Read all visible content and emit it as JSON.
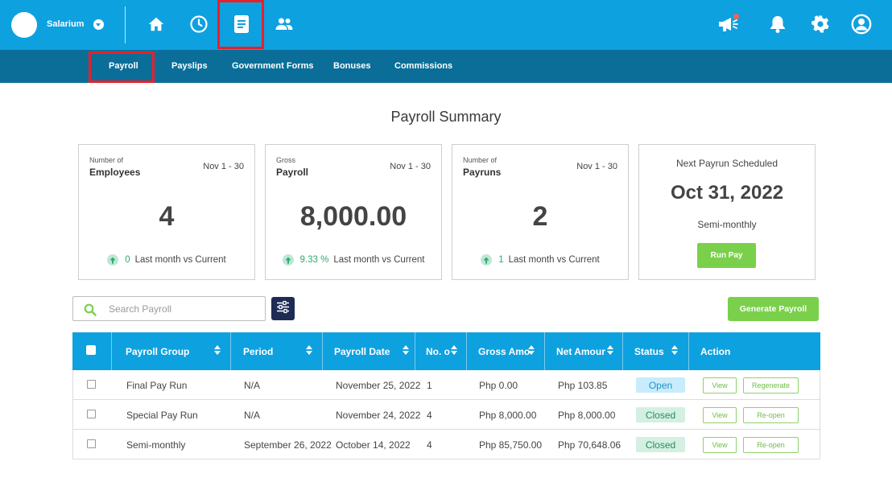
{
  "topbar": {
    "company_name": "Salarium",
    "nav_icons": [
      "home-icon",
      "clock-icon",
      "document-icon",
      "people-icon"
    ],
    "right_icons": [
      "megaphone-icon",
      "bell-icon",
      "gear-icon",
      "user-icon"
    ]
  },
  "subnav": {
    "items": [
      "Payroll",
      "Payslips",
      "Government Forms",
      "Bonuses",
      "Commissions"
    ],
    "active": "Payroll"
  },
  "summary": {
    "title": "Payroll Summary",
    "cards": [
      {
        "sublabel": "Number of",
        "label": "Employees",
        "period": "Nov 1 - 30",
        "value": "4",
        "trend_value": "0",
        "trend_text": "Last month vs Current"
      },
      {
        "sublabel": "Gross",
        "label": "Payroll",
        "period": "Nov 1 - 30",
        "value": "8,000.00",
        "trend_value": "9.33 %",
        "trend_text": "Last month vs Current"
      },
      {
        "sublabel": "Number of",
        "label": "Payruns",
        "period": "Nov 1 - 30",
        "value": "2",
        "trend_value": "1",
        "trend_text": "Last month vs Current"
      }
    ],
    "next_payrun": {
      "title": "Next Payrun Scheduled",
      "date": "Oct 31, 2022",
      "frequency": "Semi-monthly",
      "button": "Run Pay"
    }
  },
  "search": {
    "placeholder": "Search Payroll",
    "value": ""
  },
  "generate_button": "Generate Payroll",
  "table": {
    "headers": [
      "Payroll Group",
      "Period",
      "Payroll Date",
      "No. o",
      "Gross Amo",
      "Net Amour",
      "Status",
      "Action"
    ],
    "rows": [
      {
        "group": "Final Pay Run",
        "period": "N/A",
        "date": "November 25, 2022",
        "count": "1",
        "gross": "Php 0.00",
        "net": "Php 103.85",
        "status": "Open",
        "action1": "View",
        "action2": "Regenerate"
      },
      {
        "group": "Special Pay Run",
        "period": "N/A",
        "date": "November 24, 2022",
        "count": "4",
        "gross": "Php 8,000.00",
        "net": "Php 8,000.00",
        "status": "Closed",
        "action1": "View",
        "action2": "Re-open"
      },
      {
        "group": "Semi-monthly",
        "period": "September 26, 2022",
        "date": "October 14, 2022",
        "count": "4",
        "gross": "Php 85,750.00",
        "net": "Php 70,648.06",
        "status": "Closed",
        "action1": "View",
        "action2": "Re-open"
      }
    ]
  },
  "colors": {
    "primary": "#0ea1e0",
    "subnav": "#0b6e99",
    "accent_green": "#7ad04a",
    "highlight_red": "#e8202a",
    "dark_navy": "#1d2b55"
  }
}
